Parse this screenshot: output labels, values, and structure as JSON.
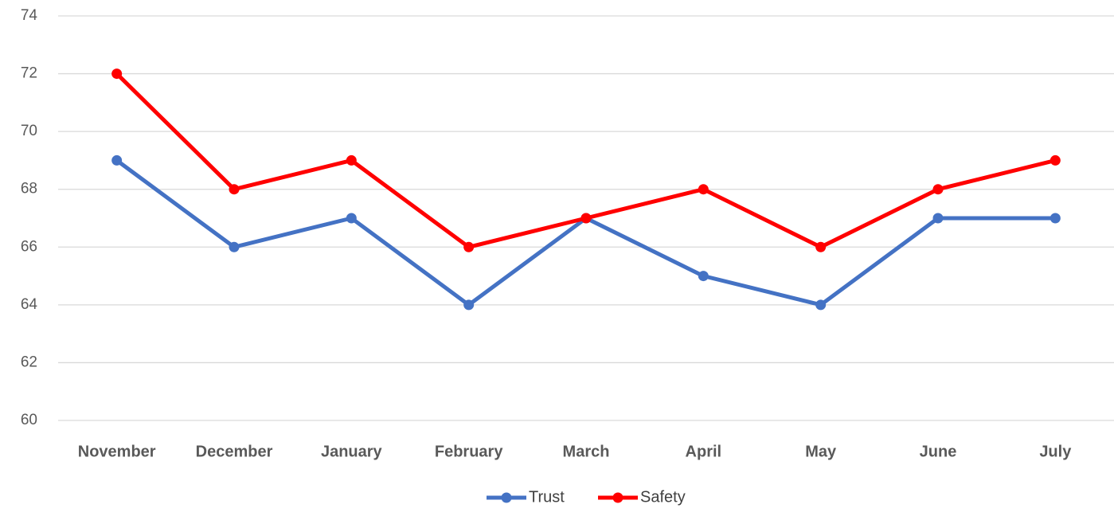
{
  "chart_data": {
    "type": "line",
    "categories": [
      "November",
      "December",
      "January",
      "February",
      "March",
      "April",
      "May",
      "June",
      "July"
    ],
    "series": [
      {
        "name": "Trust",
        "color": "#4472c4",
        "values": [
          69,
          66,
          67,
          64,
          67,
          65,
          64,
          67,
          67
        ]
      },
      {
        "name": "Safety",
        "color": "#ff0000",
        "values": [
          72,
          68,
          69,
          66,
          67,
          68,
          66,
          68,
          69
        ]
      }
    ],
    "ylim": [
      60,
      74
    ],
    "yticks": [
      60,
      62,
      64,
      66,
      68,
      70,
      72,
      74
    ],
    "grid": true,
    "legend": "bottom"
  }
}
